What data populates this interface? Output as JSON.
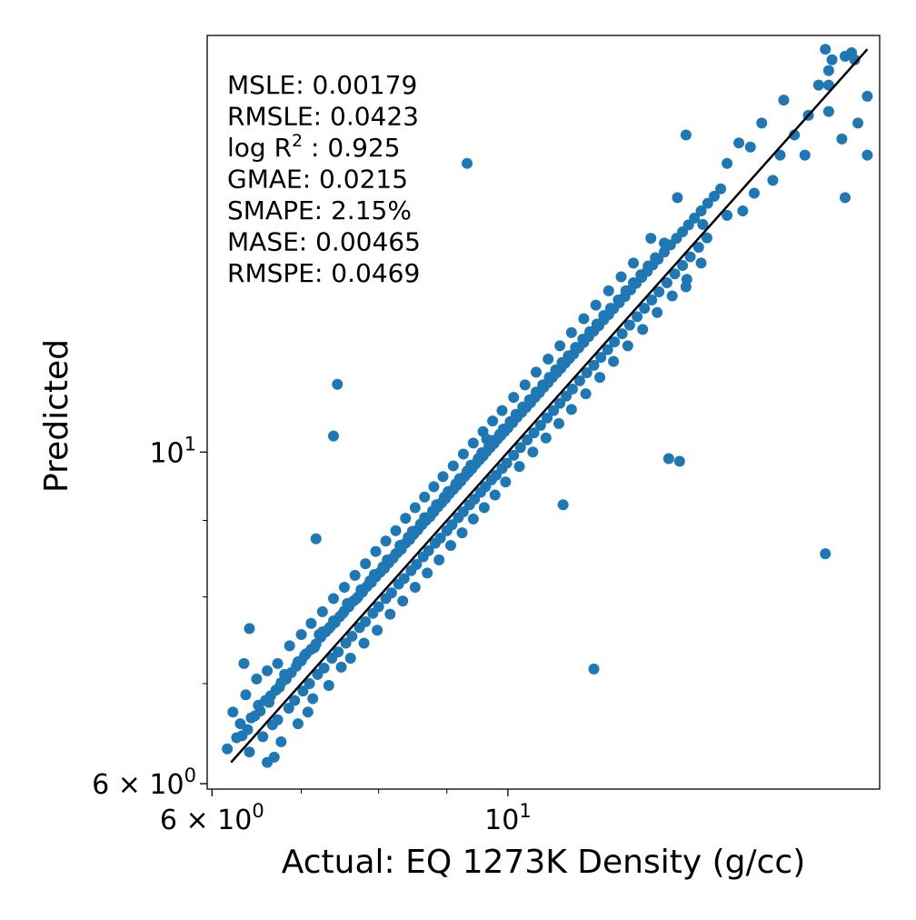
{
  "chart_data": {
    "type": "scatter",
    "xlabel": "Actual: EQ 1273K Density (g/cc)",
    "ylabel": "Predicted",
    "xscale": "log",
    "yscale": "log",
    "xlim": [
      5.95,
      19.0
    ],
    "ylim": [
      5.95,
      19.0
    ],
    "grid": false,
    "point_color": "#1f77b4",
    "line_color": "#000000",
    "x_ticks": [
      {
        "value": 6,
        "base": "6 × 10",
        "exp": "0"
      },
      {
        "value": 10,
        "base": "10",
        "exp": "1"
      }
    ],
    "y_ticks": [
      {
        "value": 6,
        "base": "6 × 10",
        "exp": "0"
      },
      {
        "value": 10,
        "base": "10",
        "exp": "1"
      }
    ],
    "minor_ticks": [
      6,
      7,
      8,
      9,
      10,
      20
    ],
    "identity_line": {
      "from": 6.2,
      "to": 18.6
    },
    "metrics": [
      {
        "label": "MSLE: 0.00179",
        "sup": ""
      },
      {
        "label": "RMSLE: 0.0423",
        "sup": ""
      },
      {
        "label": "log R",
        "sup": "2",
        "suffix": " : 0.925"
      },
      {
        "label": "GMAE: 0.0215",
        "sup": ""
      },
      {
        "label": "SMAPE: 2.15%",
        "sup": ""
      },
      {
        "label": "MASE: 0.00465",
        "sup": ""
      },
      {
        "label": "RMSPE: 0.0469",
        "sup": ""
      }
    ],
    "points": [
      [
        6.16,
        6.33
      ],
      [
        6.26,
        6.44
      ],
      [
        6.32,
        6.46
      ],
      [
        6.38,
        6.52
      ],
      [
        6.46,
        6.66
      ],
      [
        6.52,
        6.71
      ],
      [
        6.58,
        6.82
      ],
      [
        6.64,
        6.87
      ],
      [
        6.7,
        6.93
      ],
      [
        6.76,
        7.01
      ],
      [
        6.82,
        7.05
      ],
      [
        6.88,
        7.12
      ],
      [
        6.94,
        7.19
      ],
      [
        7.0,
        7.25
      ],
      [
        7.06,
        7.33
      ],
      [
        7.12,
        7.38
      ],
      [
        7.18,
        7.44
      ],
      [
        7.24,
        7.52
      ],
      [
        7.3,
        7.58
      ],
      [
        7.36,
        7.64
      ],
      [
        7.42,
        7.69
      ],
      [
        7.48,
        7.76
      ],
      [
        7.54,
        7.83
      ],
      [
        7.6,
        7.88
      ],
      [
        7.66,
        7.95
      ],
      [
        7.72,
        8.0
      ],
      [
        7.78,
        8.06
      ],
      [
        7.84,
        8.13
      ],
      [
        7.9,
        8.18
      ],
      [
        7.96,
        8.25
      ],
      [
        8.02,
        8.31
      ],
      [
        8.08,
        8.36
      ],
      [
        8.14,
        8.43
      ],
      [
        8.2,
        8.49
      ],
      [
        8.26,
        8.56
      ],
      [
        8.32,
        8.61
      ],
      [
        8.38,
        8.69
      ],
      [
        8.44,
        8.74
      ],
      [
        8.5,
        8.81
      ],
      [
        8.56,
        8.87
      ],
      [
        8.62,
        8.94
      ],
      [
        8.68,
        9.0
      ],
      [
        8.74,
        9.05
      ],
      [
        8.8,
        9.12
      ],
      [
        8.86,
        9.19
      ],
      [
        8.92,
        9.25
      ],
      [
        8.98,
        9.31
      ],
      [
        9.04,
        9.38
      ],
      [
        9.1,
        9.44
      ],
      [
        9.16,
        9.5
      ],
      [
        9.22,
        9.56
      ],
      [
        9.28,
        9.63
      ],
      [
        9.34,
        9.69
      ],
      [
        9.4,
        9.75
      ],
      [
        9.46,
        9.82
      ],
      [
        9.52,
        9.88
      ],
      [
        9.58,
        9.94
      ],
      [
        9.64,
        10.01
      ],
      [
        9.7,
        10.07
      ],
      [
        9.76,
        10.13
      ],
      [
        9.82,
        10.2
      ],
      [
        9.88,
        10.26
      ],
      [
        9.94,
        10.32
      ],
      [
        10.0,
        10.38
      ],
      [
        10.08,
        10.46
      ],
      [
        10.16,
        10.55
      ],
      [
        10.24,
        10.63
      ],
      [
        10.32,
        10.71
      ],
      [
        10.4,
        10.79
      ],
      [
        10.48,
        10.88
      ],
      [
        10.56,
        10.96
      ],
      [
        10.64,
        11.05
      ],
      [
        10.72,
        11.13
      ],
      [
        10.8,
        11.22
      ],
      [
        10.88,
        11.3
      ],
      [
        10.96,
        11.38
      ],
      [
        11.04,
        11.47
      ],
      [
        11.12,
        11.55
      ],
      [
        11.2,
        11.63
      ],
      [
        11.3,
        11.74
      ],
      [
        11.4,
        11.84
      ],
      [
        11.5,
        11.95
      ],
      [
        11.6,
        12.05
      ],
      [
        11.7,
        12.15
      ],
      [
        11.8,
        12.26
      ],
      [
        11.9,
        12.36
      ],
      [
        12.0,
        12.47
      ],
      [
        12.12,
        12.59
      ],
      [
        12.24,
        12.71
      ],
      [
        12.36,
        12.84
      ],
      [
        12.48,
        12.97
      ],
      [
        12.6,
        13.09
      ],
      [
        12.72,
        13.21
      ],
      [
        12.84,
        13.34
      ],
      [
        12.96,
        13.46
      ],
      [
        13.1,
        13.61
      ],
      [
        13.24,
        13.76
      ],
      [
        13.38,
        13.9
      ],
      [
        13.52,
        14.04
      ],
      [
        13.66,
        14.19
      ],
      [
        13.8,
        14.34
      ],
      [
        13.96,
        14.5
      ],
      [
        14.12,
        14.67
      ],
      [
        14.28,
        14.83
      ],
      [
        14.44,
        15.0
      ],
      [
        6.4,
        6.3
      ],
      [
        6.55,
        6.45
      ],
      [
        6.66,
        6.57
      ],
      [
        6.72,
        6.62
      ],
      [
        6.85,
        6.74
      ],
      [
        6.92,
        6.82
      ],
      [
        7.02,
        6.92
      ],
      [
        7.1,
        7.0
      ],
      [
        7.2,
        7.1
      ],
      [
        7.28,
        7.17
      ],
      [
        7.38,
        7.28
      ],
      [
        7.46,
        7.35
      ],
      [
        7.56,
        7.45
      ],
      [
        7.64,
        7.53
      ],
      [
        7.74,
        7.63
      ],
      [
        7.82,
        7.7
      ],
      [
        7.92,
        7.8
      ],
      [
        8.0,
        7.88
      ],
      [
        8.1,
        7.98
      ],
      [
        8.18,
        8.05
      ],
      [
        8.28,
        8.16
      ],
      [
        8.36,
        8.23
      ],
      [
        8.46,
        8.33
      ],
      [
        8.54,
        8.41
      ],
      [
        8.64,
        8.51
      ],
      [
        8.72,
        8.59
      ],
      [
        8.82,
        8.69
      ],
      [
        8.9,
        8.76
      ],
      [
        9.0,
        8.86
      ],
      [
        9.08,
        8.94
      ],
      [
        9.18,
        9.04
      ],
      [
        9.26,
        9.12
      ],
      [
        9.36,
        9.22
      ],
      [
        9.44,
        9.3
      ],
      [
        9.54,
        9.4
      ],
      [
        9.62,
        9.48
      ],
      [
        9.72,
        9.58
      ],
      [
        9.8,
        9.65
      ],
      [
        9.9,
        9.75
      ],
      [
        9.98,
        9.83
      ],
      [
        10.1,
        9.95
      ],
      [
        10.22,
        10.07
      ],
      [
        10.34,
        10.19
      ],
      [
        10.46,
        10.3
      ],
      [
        10.58,
        10.42
      ],
      [
        10.7,
        10.54
      ],
      [
        10.82,
        10.66
      ],
      [
        10.94,
        10.78
      ],
      [
        11.06,
        10.9
      ],
      [
        11.18,
        11.02
      ],
      [
        11.32,
        11.16
      ],
      [
        11.46,
        11.3
      ],
      [
        11.6,
        11.43
      ],
      [
        11.74,
        11.57
      ],
      [
        11.88,
        11.71
      ],
      [
        12.02,
        11.85
      ],
      [
        12.18,
        12.0
      ],
      [
        12.34,
        12.16
      ],
      [
        12.5,
        12.32
      ],
      [
        12.66,
        12.48
      ],
      [
        12.82,
        12.64
      ],
      [
        12.98,
        12.8
      ],
      [
        13.16,
        12.98
      ],
      [
        13.34,
        13.16
      ],
      [
        13.52,
        13.33
      ],
      [
        13.7,
        13.51
      ],
      [
        13.9,
        13.71
      ],
      [
        14.1,
        13.91
      ],
      [
        6.3,
        6.58
      ],
      [
        6.42,
        6.64
      ],
      [
        6.5,
        6.77
      ],
      [
        6.62,
        6.8
      ],
      [
        6.74,
        6.96
      ],
      [
        6.8,
        7.1
      ],
      [
        6.96,
        7.24
      ],
      [
        7.04,
        7.31
      ],
      [
        7.16,
        7.4
      ],
      [
        7.22,
        7.55
      ],
      [
        7.34,
        7.62
      ],
      [
        7.4,
        7.71
      ],
      [
        7.52,
        7.8
      ],
      [
        7.58,
        7.92
      ],
      [
        7.7,
        7.98
      ],
      [
        7.76,
        8.09
      ],
      [
        7.88,
        8.2
      ],
      [
        7.94,
        8.28
      ],
      [
        8.06,
        8.38
      ],
      [
        8.12,
        8.47
      ],
      [
        8.24,
        8.55
      ],
      [
        8.3,
        8.66
      ],
      [
        8.42,
        8.77
      ],
      [
        8.48,
        8.85
      ],
      [
        8.6,
        8.95
      ],
      [
        8.66,
        9.04
      ],
      [
        8.78,
        9.13
      ],
      [
        8.84,
        9.22
      ],
      [
        8.96,
        9.33
      ],
      [
        9.02,
        9.41
      ],
      [
        9.14,
        9.52
      ],
      [
        9.2,
        9.6
      ],
      [
        9.32,
        9.71
      ],
      [
        9.38,
        9.8
      ],
      [
        9.5,
        9.9
      ],
      [
        9.56,
        9.99
      ],
      [
        9.68,
        10.1
      ],
      [
        9.74,
        10.18
      ],
      [
        9.86,
        10.28
      ],
      [
        9.92,
        10.36
      ],
      [
        10.04,
        10.48
      ],
      [
        10.14,
        10.6
      ],
      [
        10.26,
        10.72
      ],
      [
        10.38,
        10.84
      ],
      [
        10.5,
        10.97
      ],
      [
        10.62,
        11.09
      ],
      [
        10.74,
        11.22
      ],
      [
        10.86,
        11.35
      ],
      [
        10.98,
        11.48
      ],
      [
        11.1,
        11.6
      ],
      [
        11.24,
        11.75
      ],
      [
        11.38,
        11.9
      ],
      [
        11.52,
        12.04
      ],
      [
        11.66,
        12.18
      ],
      [
        11.8,
        12.34
      ],
      [
        11.94,
        12.48
      ],
      [
        12.1,
        12.64
      ],
      [
        12.26,
        12.82
      ],
      [
        12.42,
        12.98
      ],
      [
        12.58,
        13.14
      ],
      [
        12.74,
        13.32
      ],
      [
        12.9,
        13.49
      ],
      [
        6.6,
        6.2
      ],
      [
        6.68,
        6.25
      ],
      [
        6.76,
        6.4
      ],
      [
        6.96,
        6.58
      ],
      [
        7.08,
        6.7
      ],
      [
        7.14,
        6.84
      ],
      [
        7.34,
        6.98
      ],
      [
        7.5,
        7.18
      ],
      [
        7.62,
        7.28
      ],
      [
        7.8,
        7.45
      ],
      [
        7.98,
        7.6
      ],
      [
        8.16,
        7.79
      ],
      [
        8.34,
        7.95
      ],
      [
        8.52,
        8.12
      ],
      [
        8.7,
        8.3
      ],
      [
        8.88,
        8.47
      ],
      [
        9.06,
        8.66
      ],
      [
        9.24,
        8.83
      ],
      [
        9.42,
        9.02
      ],
      [
        9.6,
        9.18
      ],
      [
        9.78,
        9.36
      ],
      [
        9.96,
        9.55
      ],
      [
        10.2,
        9.78
      ],
      [
        10.44,
        10.0
      ],
      [
        10.68,
        10.22
      ],
      [
        10.92,
        10.45
      ],
      [
        11.16,
        10.68
      ],
      [
        11.44,
        10.94
      ],
      [
        11.72,
        11.22
      ],
      [
        12.0,
        11.5
      ],
      [
        12.3,
        11.78
      ],
      [
        12.62,
        12.08
      ],
      [
        12.94,
        12.4
      ],
      [
        13.28,
        12.72
      ],
      [
        13.62,
        13.05
      ],
      [
        13.96,
        13.38
      ],
      [
        6.22,
        6.7
      ],
      [
        6.36,
        6.88
      ],
      [
        6.48,
        7.05
      ],
      [
        6.6,
        7.14
      ],
      [
        6.72,
        7.22
      ],
      [
        6.86,
        7.42
      ],
      [
        7.0,
        7.55
      ],
      [
        7.12,
        7.68
      ],
      [
        7.26,
        7.82
      ],
      [
        7.4,
        7.98
      ],
      [
        7.54,
        8.12
      ],
      [
        7.68,
        8.27
      ],
      [
        7.82,
        8.42
      ],
      [
        7.96,
        8.58
      ],
      [
        8.1,
        8.72
      ],
      [
        8.24,
        8.86
      ],
      [
        8.38,
        9.03
      ],
      [
        8.52,
        9.18
      ],
      [
        8.66,
        9.33
      ],
      [
        8.8,
        9.48
      ],
      [
        8.94,
        9.63
      ],
      [
        9.1,
        9.79
      ],
      [
        9.26,
        9.97
      ],
      [
        9.42,
        10.14
      ],
      [
        9.58,
        10.32
      ],
      [
        9.74,
        10.49
      ],
      [
        9.9,
        10.66
      ],
      [
        10.1,
        10.88
      ],
      [
        10.3,
        11.09
      ],
      [
        10.5,
        11.31
      ],
      [
        10.72,
        11.54
      ],
      [
        10.94,
        11.78
      ],
      [
        11.16,
        12.02
      ],
      [
        11.4,
        12.28
      ],
      [
        11.64,
        12.54
      ],
      [
        11.9,
        12.82
      ],
      [
        12.16,
        13.1
      ],
      [
        12.42,
        13.38
      ],
      [
        14.6,
        15.6
      ],
      [
        14.9,
        16.1
      ],
      [
        15.2,
        16.0
      ],
      [
        15.5,
        16.6
      ],
      [
        15.8,
        15.2
      ],
      [
        16.1,
        17.2
      ],
      [
        16.4,
        16.3
      ],
      [
        16.8,
        16.8
      ],
      [
        17.1,
        17.6
      ],
      [
        17.5,
        18.3
      ],
      [
        17.9,
        18.4
      ],
      [
        18.2,
        18.3
      ],
      [
        16.0,
        15.8
      ],
      [
        15.0,
        14.5
      ],
      [
        15.3,
        14.9
      ],
      [
        17.4,
        16.9
      ],
      [
        18.6,
        17.3
      ],
      [
        13.4,
        14.8
      ],
      [
        14.0,
        14.2
      ],
      [
        14.6,
        14.4
      ],
      [
        13.1,
        13.8
      ],
      [
        12.8,
        13.9
      ],
      [
        13.6,
        12.9
      ],
      [
        17.3,
        18.6
      ],
      [
        18.1,
        18.5
      ],
      [
        17.4,
        18.0
      ],
      [
        17.4,
        17.6
      ],
      [
        17.8,
        16.2
      ],
      [
        18.3,
        16.6
      ],
      [
        18.6,
        15.8
      ],
      [
        17.9,
        14.8
      ],
      [
        13.6,
        16.3
      ],
      [
        16.7,
        15.8
      ],
      [
        9.32,
        15.6
      ],
      [
        7.45,
        11.1
      ],
      [
        7.4,
        10.25
      ],
      [
        9.64,
        10.2
      ],
      [
        7.18,
        8.75
      ],
      [
        6.4,
        7.62
      ],
      [
        6.34,
        7.22
      ],
      [
        7.26,
        7.58
      ],
      [
        11.0,
        9.22
      ],
      [
        13.2,
        9.9
      ],
      [
        13.45,
        9.86
      ],
      [
        17.3,
        8.55
      ],
      [
        11.6,
        7.16
      ]
    ]
  }
}
